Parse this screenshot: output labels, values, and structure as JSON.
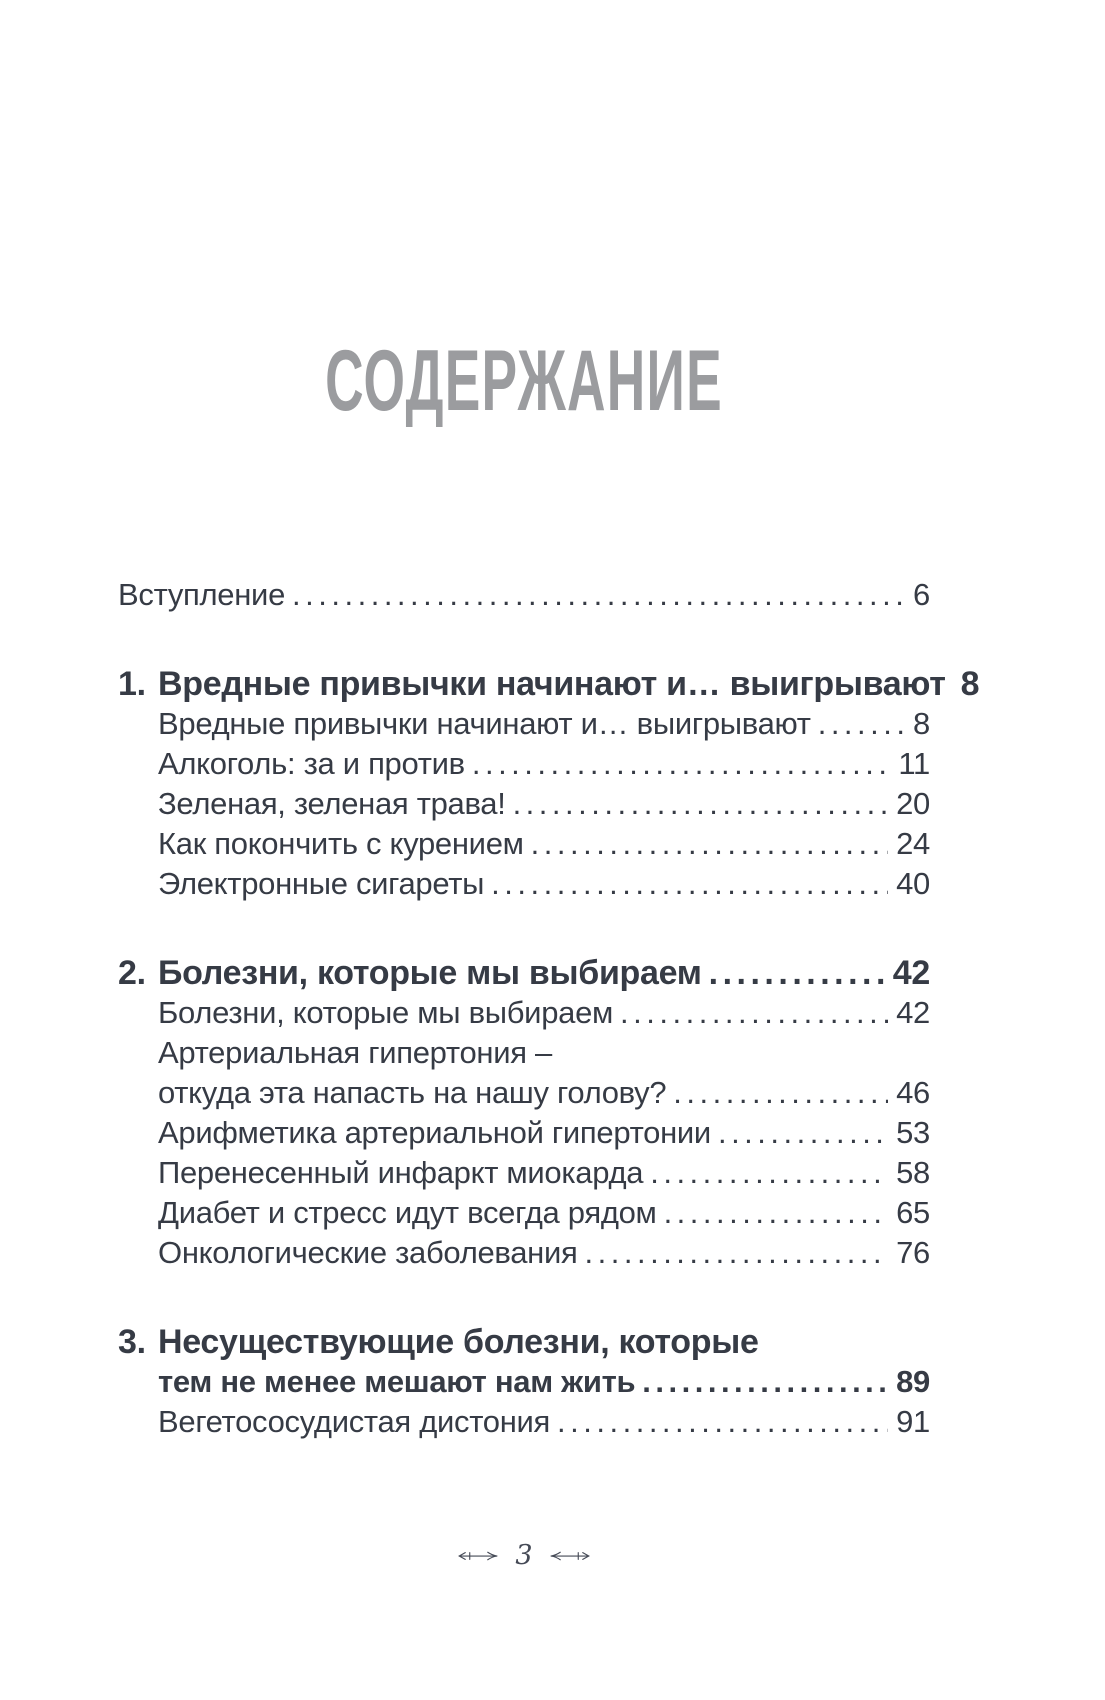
{
  "page": {
    "title": "СОДЕРЖАНИЕ",
    "footer": {
      "page_number": "3"
    },
    "colors": {
      "text": "#363b45",
      "title_gray": "#9b9c9f",
      "ornament": "#454a56",
      "background": "#ffffff"
    }
  },
  "toc": {
    "rows": [
      {
        "level": "top",
        "label": "Вступление",
        "page": "6",
        "bold": false,
        "gap_before": false,
        "leader": true
      },
      {
        "level": "chapter",
        "number": "1.",
        "label": "Вредные привычки начинают и… выигрывают",
        "page": "8",
        "bold": true,
        "gap_before": true,
        "leader": true
      },
      {
        "level": "sub",
        "label": "Вредные привычки начинают и… выигрывают",
        "page": "8",
        "bold": false,
        "gap_before": false,
        "leader": true
      },
      {
        "level": "sub",
        "label": "Алкоголь: за и против",
        "page": "11",
        "bold": false,
        "gap_before": false,
        "leader": true
      },
      {
        "level": "sub",
        "label": "Зеленая, зеленая трава!",
        "page": "20",
        "bold": false,
        "gap_before": false,
        "leader": true
      },
      {
        "level": "sub",
        "label": "Как покончить с курением",
        "page": "24",
        "bold": false,
        "gap_before": false,
        "leader": true
      },
      {
        "level": "sub",
        "label": "Электронные сигареты",
        "page": "40",
        "bold": false,
        "gap_before": false,
        "leader": true
      },
      {
        "level": "chapter",
        "number": "2.",
        "label": "Болезни, которые мы выбираем",
        "page": "42",
        "bold": true,
        "gap_before": true,
        "leader": true
      },
      {
        "level": "sub",
        "label": "Болезни, которые мы выбираем",
        "page": "42",
        "bold": false,
        "gap_before": false,
        "leader": true
      },
      {
        "level": "sub",
        "label": "Артериальная гипертония –",
        "bold": false,
        "gap_before": false,
        "leader": false
      },
      {
        "level": "sub",
        "label": "откуда эта напасть на нашу голову?",
        "page": "46",
        "bold": false,
        "gap_before": false,
        "leader": true
      },
      {
        "level": "sub",
        "label": "Арифметика артериальной гипертонии",
        "page": "53",
        "bold": false,
        "gap_before": false,
        "leader": true
      },
      {
        "level": "sub",
        "label": "Перенесенный инфаркт миокарда",
        "page": "58",
        "bold": false,
        "gap_before": false,
        "leader": true
      },
      {
        "level": "sub",
        "label": "Диабет и стресс идут всегда рядом",
        "page": "65",
        "bold": false,
        "gap_before": false,
        "leader": true
      },
      {
        "level": "sub",
        "label": "Онкологические заболевания",
        "page": "76",
        "bold": false,
        "gap_before": false,
        "leader": true
      },
      {
        "level": "chapter",
        "number": "3.",
        "label": "Несуществующие болезни, которые",
        "bold": true,
        "gap_before": true,
        "leader": false
      },
      {
        "level": "chapter-cont",
        "label": "тем не менее мешают нам жить",
        "page": "89",
        "bold": true,
        "gap_before": false,
        "leader": true
      },
      {
        "level": "sub",
        "label": "Вегетососудистая дистония",
        "page": "91",
        "bold": false,
        "gap_before": false,
        "leader": true
      }
    ]
  }
}
